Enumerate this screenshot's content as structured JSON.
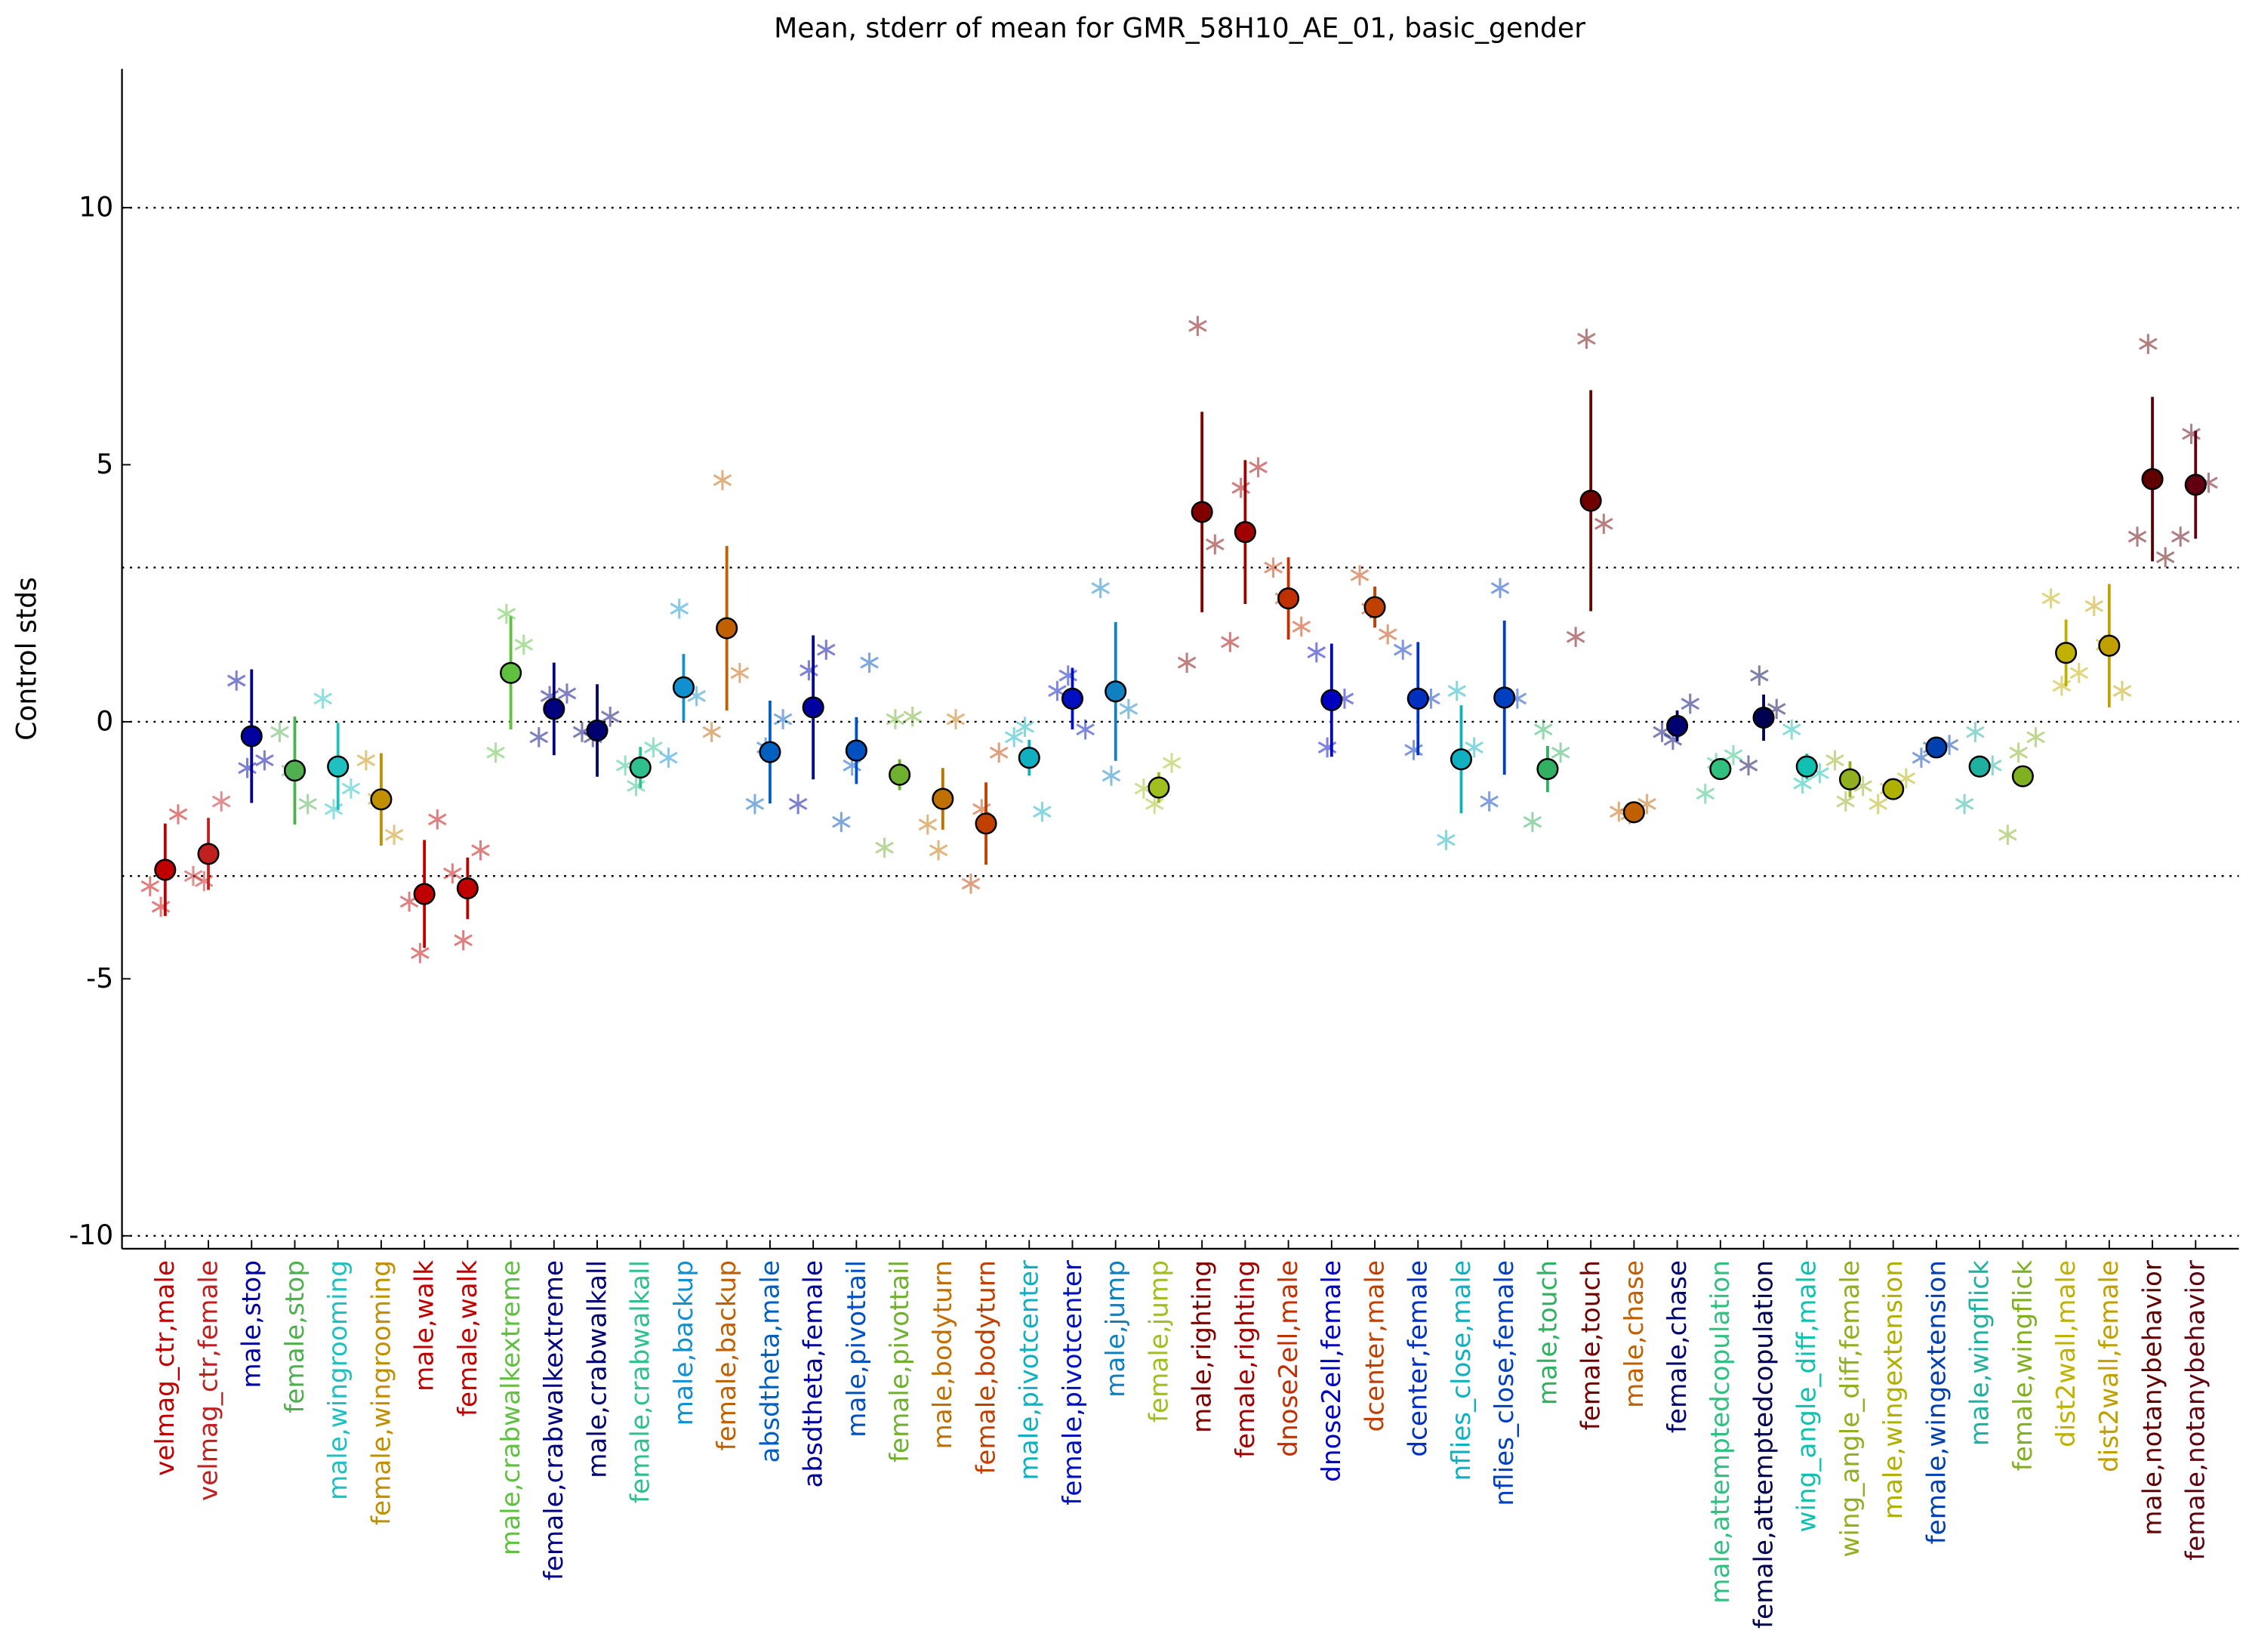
{
  "chart_data": {
    "type": "errorbar",
    "title": "Mean, stderr of mean for GMR_58H10_AE_01, basic_gender",
    "y_label": "Control stds",
    "categories": [
      "velmag_ctr,male",
      "velmag_ctr,female",
      "male,stop",
      "female,stop",
      "male,wingrooming",
      "female,wingrooming",
      "male,walk",
      "female,walk",
      "male,crabwalkextreme",
      "female,crabwalkextreme",
      "male,crabwalkall",
      "female,crabwalkall",
      "male,backup",
      "female,backup",
      "absdtheta,male",
      "absdtheta,female",
      "male,pivottail",
      "female,pivottail",
      "male,bodyturn",
      "female,bodyturn",
      "male,pivotcenter",
      "female,pivotcenter",
      "male,jump",
      "female,jump",
      "male,righting",
      "female,righting",
      "dnose2ell,male",
      "dnose2ell,female",
      "dcenter,male",
      "dcenter,female",
      "nflies_close,male",
      "nflies_close,female",
      "male,touch",
      "female,touch",
      "male,chase",
      "female,chase",
      "male,attemptedcopulation",
      "female,attemptedcopulation",
      "wing_angle_diff,male",
      "wing_angle_diff,female",
      "male,wingextension",
      "female,wingextension",
      "male,wingflick",
      "female,wingflick",
      "dist2wall,male",
      "dist2wall,female",
      "male,notanybehavior",
      "female,notanybehavior"
    ],
    "values": [
      -2.88,
      -2.57,
      -0.28,
      -0.95,
      -0.87,
      -1.51,
      -3.35,
      -3.24,
      0.95,
      0.25,
      -0.17,
      -0.89,
      0.67,
      1.82,
      -0.59,
      0.28,
      -0.56,
      -1.03,
      -1.5,
      -1.98,
      -0.7,
      0.45,
      0.59,
      -1.28,
      4.08,
      3.69,
      2.4,
      0.42,
      2.23,
      0.45,
      -0.73,
      0.47,
      -0.92,
      4.3,
      -1.76,
      -0.08,
      -0.92,
      0.08,
      -0.87,
      -1.12,
      -1.31,
      -0.5,
      -0.87,
      -1.06,
      1.34,
      1.48,
      4.72,
      4.61
    ],
    "errors": [
      0.9,
      0.7,
      1.3,
      1.05,
      0.85,
      0.9,
      1.05,
      0.6,
      1.1,
      0.9,
      0.9,
      0.4,
      0.65,
      1.6,
      1.0,
      1.4,
      0.65,
      0.3,
      0.6,
      0.8,
      0.35,
      0.6,
      1.35,
      0.3,
      1.95,
      1.4,
      0.8,
      1.1,
      0.4,
      1.1,
      1.05,
      1.5,
      0.45,
      2.15,
      0.2,
      0.3,
      0.15,
      0.45,
      0.25,
      0.35,
      0.15,
      0.15,
      0.2,
      0.2,
      0.65,
      1.2,
      1.6,
      1.05
    ],
    "points": [
      [
        -3.2,
        -3.6,
        -1.8
      ],
      [
        -3.0,
        -3.1,
        -1.55
      ],
      [
        0.8,
        -0.9,
        -0.75
      ],
      [
        -0.2,
        -0.95,
        -1.6
      ],
      [
        0.45,
        -1.7,
        -1.3
      ],
      [
        -0.75,
        -1.5,
        -2.2
      ],
      [
        -3.5,
        -4.5,
        -1.9
      ],
      [
        -2.95,
        -4.25,
        -2.5
      ],
      [
        -0.6,
        2.1,
        1.5
      ],
      [
        -0.3,
        0.5,
        0.55
      ],
      [
        -0.2,
        -0.3,
        0.1
      ],
      [
        -0.85,
        -1.25,
        -0.5
      ],
      [
        -0.7,
        2.2,
        0.5
      ],
      [
        -0.2,
        4.7,
        0.95
      ],
      [
        -1.6,
        -0.5,
        0.05
      ],
      [
        -1.6,
        1.0,
        1.4
      ],
      [
        -1.95,
        -0.85,
        1.15
      ],
      [
        -2.45,
        0.05,
        0.1
      ],
      [
        -2.0,
        -2.5,
        0.05
      ],
      [
        -3.15,
        -1.7,
        -0.6
      ],
      [
        -0.3,
        -0.1,
        -1.75
      ],
      [
        0.6,
        0.9,
        -0.15
      ],
      [
        2.6,
        -1.05,
        0.25
      ],
      [
        -1.3,
        -1.6,
        -0.8
      ],
      [
        1.15,
        7.7,
        3.45
      ],
      [
        1.55,
        4.55,
        4.95
      ],
      [
        3.0,
        2.4,
        1.85
      ],
      [
        1.35,
        -0.5,
        0.45
      ],
      [
        2.85,
        2.2,
        1.7
      ],
      [
        1.4,
        -0.55,
        0.45
      ],
      [
        -2.3,
        0.6,
        -0.5
      ],
      [
        -1.55,
        2.6,
        0.45
      ],
      [
        -1.95,
        -0.15,
        -0.6
      ],
      [
        1.65,
        7.45,
        3.85
      ],
      [
        -1.75,
        -1.8,
        -1.6
      ],
      [
        -0.2,
        -0.35,
        0.35
      ],
      [
        -1.4,
        -0.8,
        -0.65
      ],
      [
        -0.85,
        0.9,
        0.25
      ],
      [
        -0.15,
        -1.2,
        -1.0
      ],
      [
        -0.75,
        -1.55,
        -1.25
      ],
      [
        -1.6,
        -1.3,
        -1.1
      ],
      [
        -0.7,
        -0.5,
        -0.45
      ],
      [
        -1.6,
        -0.2,
        -0.85
      ],
      [
        -2.2,
        -0.6,
        -0.3
      ],
      [
        2.4,
        0.7,
        0.95
      ],
      [
        2.25,
        1.5,
        0.6
      ],
      [
        3.6,
        7.35,
        3.2
      ],
      [
        3.6,
        5.6,
        4.65
      ]
    ],
    "colors": [
      "#c00000",
      "#c02020",
      "#0000a0",
      "#50b050",
      "#20c0c0",
      "#c09000",
      "#c00000",
      "#c00000",
      "#60c040",
      "#000080",
      "#000070",
      "#30c090",
      "#1090d0",
      "#c06000",
      "#0060c0",
      "#0000a0",
      "#0050c0",
      "#70b030",
      "#c07000",
      "#c04000",
      "#10b0c0",
      "#0010c0",
      "#1080c0",
      "#a0c020",
      "#800000",
      "#a00000",
      "#c03000",
      "#0000c0",
      "#c04000",
      "#0030c0",
      "#10b0c0",
      "#0040c0",
      "#30b060",
      "#700000",
      "#c06000",
      "#000070",
      "#30c080",
      "#000050",
      "#10c0b0",
      "#90b020",
      "#b0b000",
      "#0040b0",
      "#20b0a0",
      "#80b020",
      "#c0b000",
      "#c0a000",
      "#600000",
      "#600010"
    ],
    "ylim": [
      -10.25,
      12.7
    ],
    "yticks": [
      -10,
      -5,
      0,
      5,
      10
    ],
    "hlines": [
      -10,
      -3,
      0,
      3,
      10
    ]
  }
}
